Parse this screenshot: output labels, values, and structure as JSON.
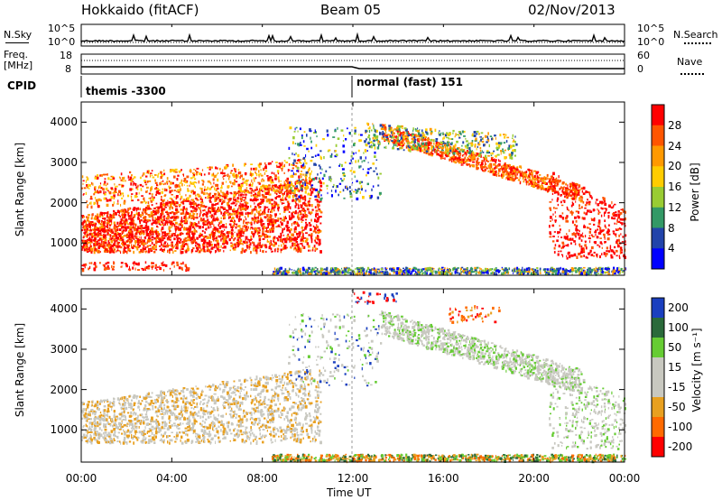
{
  "header": {
    "station": "Hokkaido (fitACF)",
    "beam": "Beam 05",
    "date": "02/Nov/2013"
  },
  "panels": {
    "nsky_label": "N.Sky",
    "nsearch_label": "N.Search",
    "noise_ticks": [
      "10^5",
      "10^0"
    ],
    "freq_label": "Freq.",
    "freq_unit": "[MHz]",
    "freq_ticks": [
      "18",
      "8"
    ],
    "nave_label": "Nave",
    "nave_ticks": [
      "60",
      "0"
    ],
    "cpid_label": "CPID",
    "cpid_1": "themis -3300",
    "cpid_2": "normal (fast) 151"
  },
  "chart_data": [
    {
      "type": "heatmap",
      "name": "power",
      "ylabel": "Slant Range [km]",
      "yticks": [
        1000,
        2000,
        3000,
        4000
      ],
      "ylim": [
        200,
        4500
      ],
      "colorbar_label": "Power [dB]",
      "colorbar_ticks": [
        "28",
        "24",
        "20",
        "16",
        "12",
        "8",
        "4"
      ],
      "colorbar_colors": [
        "#ff0000",
        "#ff5500",
        "#ff9900",
        "#ffcc00",
        "#99cc33",
        "#339966",
        "#2244aa",
        "#0000ff"
      ]
    },
    {
      "type": "heatmap",
      "name": "velocity",
      "ylabel": "Slant Range [km]",
      "yticks": [
        1000,
        2000,
        3000,
        4000
      ],
      "ylim": [
        200,
        4500
      ],
      "colorbar_label": "Velocity [m s⁻¹]",
      "colorbar_ticks": [
        "200",
        "100",
        "50",
        "15",
        "-15",
        "-50",
        "-100",
        "-200"
      ],
      "colorbar_colors": [
        "#1a3fbf",
        "#2a6a3a",
        "#66cc33",
        "#c8c8c0",
        "#c8c8c0",
        "#e8a020",
        "#ff6a00",
        "#ff0000"
      ]
    }
  ],
  "xaxis": {
    "label": "Time UT",
    "ticks": [
      "00:00",
      "04:00",
      "08:00",
      "12:00",
      "16:00",
      "20:00",
      "00:00"
    ]
  }
}
